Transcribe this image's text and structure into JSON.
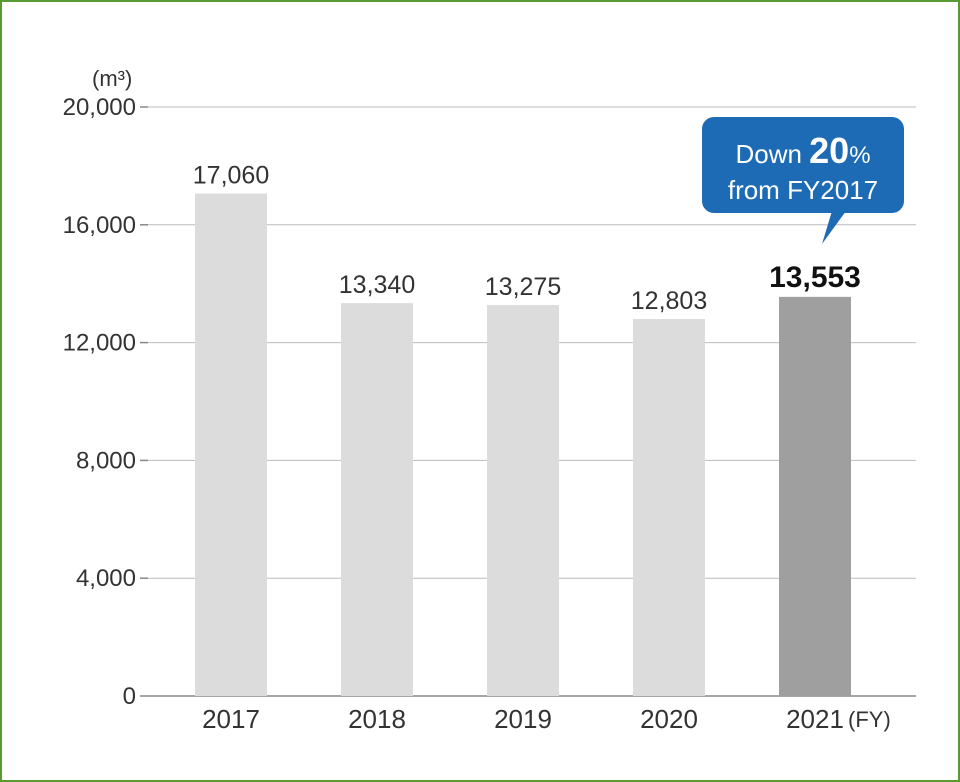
{
  "chart_data": {
    "type": "bar",
    "categories": [
      "2017",
      "2018",
      "2019",
      "2020",
      "2021"
    ],
    "values": [
      17060,
      13340,
      13275,
      12803,
      13553
    ],
    "value_labels": [
      "17,060",
      "13,340",
      "13,275",
      "12,803",
      "13,553"
    ],
    "highlight_index": 4,
    "ylabel": "(m³)",
    "xlabel": "(FY)",
    "ylim": [
      0,
      20000
    ],
    "yticks": [
      0,
      4000,
      8000,
      12000,
      16000,
      20000
    ],
    "ytick_labels": [
      "0",
      "4,000",
      "8,000",
      "12,000",
      "16,000",
      "20,000"
    ],
    "grid": true,
    "annotation": {
      "line1_prefix": "Down ",
      "line1_value": "20",
      "line1_suffix": "%",
      "line2": "from FY2017"
    }
  },
  "colors": {
    "bar": "#dcdcdc",
    "bar_highlight": "#9f9f9f",
    "grid": "#bbbbbb",
    "axis": "#888888",
    "callout": "#1d6bb5",
    "frame": "#5a9a32"
  }
}
